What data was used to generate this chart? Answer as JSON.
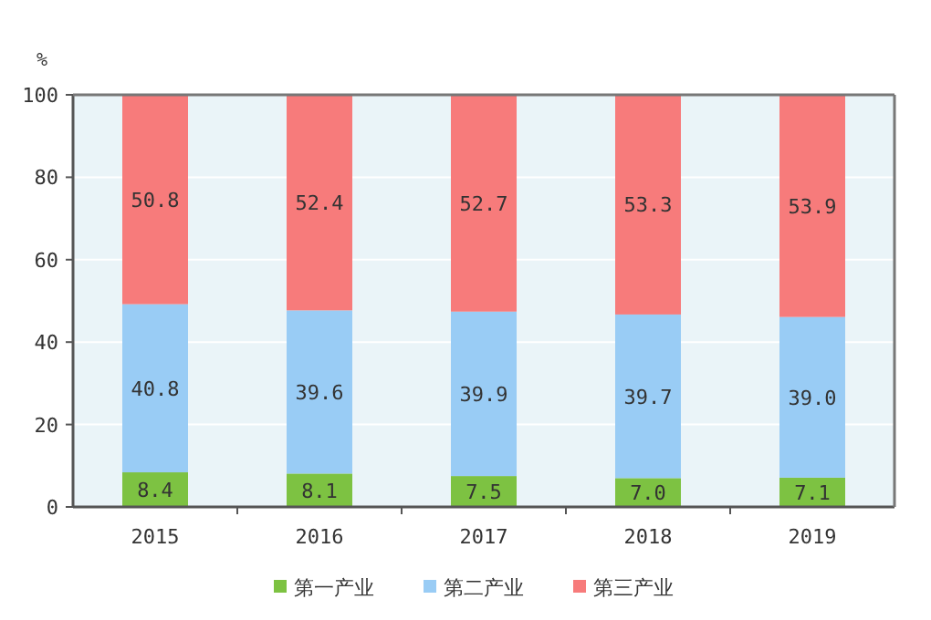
{
  "chart_data": {
    "type": "bar",
    "stacked": true,
    "ylabel": "%",
    "categories": [
      "2015",
      "2016",
      "2017",
      "2018",
      "2019"
    ],
    "series": [
      {
        "name": "第一产业",
        "color": "#7dc242",
        "values": [
          8.4,
          8.1,
          7.5,
          7.0,
          7.1
        ],
        "value_labels": [
          "8.4",
          "8.1",
          "7.5",
          "7.0",
          "7.1"
        ]
      },
      {
        "name": "第二产业",
        "color": "#99ccf5",
        "values": [
          40.8,
          39.6,
          39.9,
          39.7,
          39.0
        ],
        "value_labels": [
          "40.8",
          "39.6",
          "39.9",
          "39.7",
          "39.0"
        ]
      },
      {
        "name": "第三产业",
        "color": "#f77b7b",
        "values": [
          50.8,
          52.4,
          52.7,
          53.3,
          53.9
        ],
        "value_labels": [
          "50.8",
          "52.4",
          "52.7",
          "53.3",
          "53.9"
        ]
      }
    ],
    "ylim": [
      0,
      100
    ],
    "yticks": [
      0,
      20,
      40,
      60,
      80,
      100
    ],
    "grid": "y",
    "legend": "bottom"
  }
}
